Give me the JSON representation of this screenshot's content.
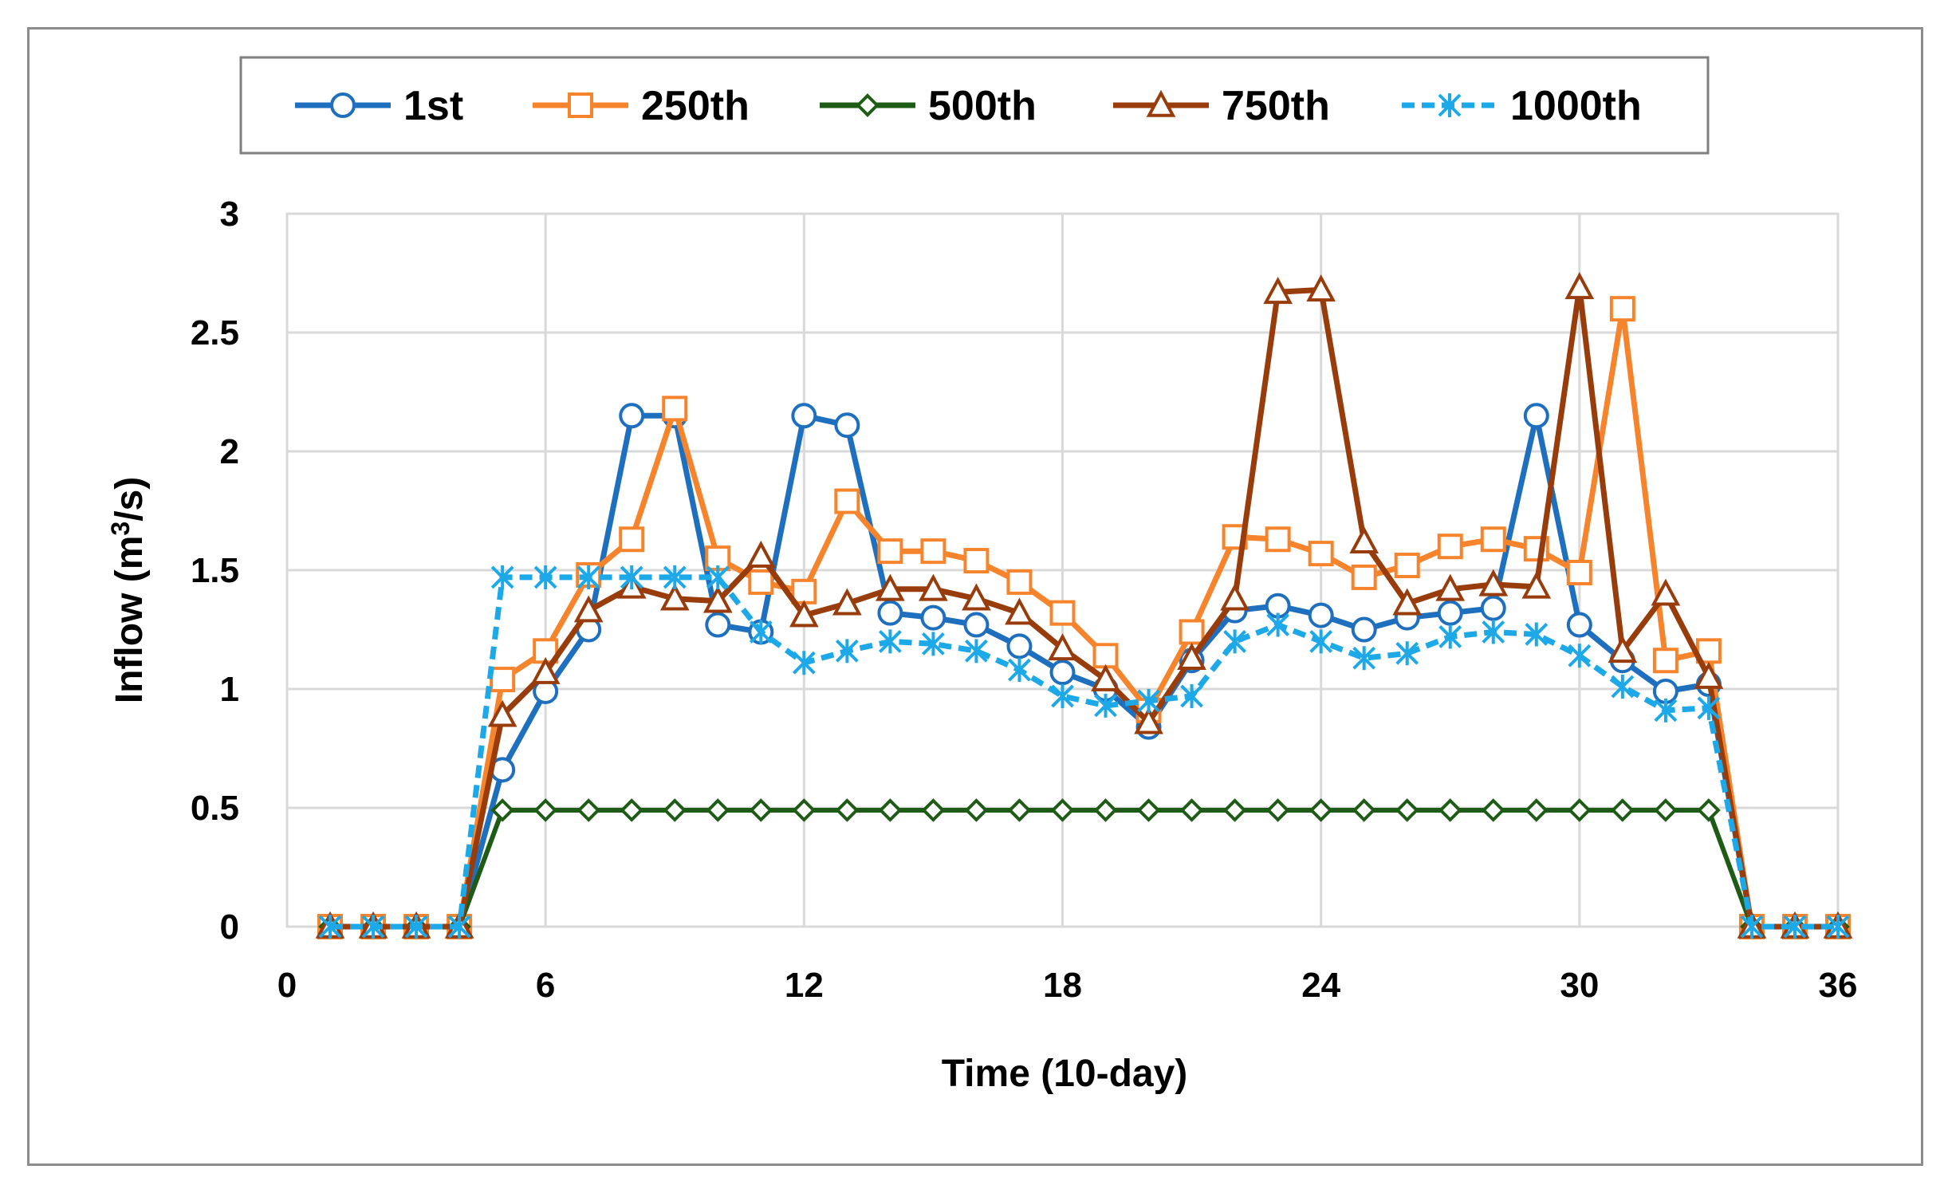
{
  "chart_data": {
    "type": "line",
    "title": "",
    "xlabel": "Time (10-day)",
    "ylabel_main": "Inflow (m",
    "ylabel_sup": "3",
    "ylabel_tail": "/s)",
    "xlim": [
      0,
      36
    ],
    "ylim": [
      0,
      3
    ],
    "xticks": [
      0,
      6,
      12,
      18,
      24,
      30,
      36
    ],
    "yticks": [
      0,
      0.5,
      1,
      1.5,
      2,
      2.5,
      3
    ],
    "ytick_labels": [
      "0",
      "0.5",
      "1",
      "1.5",
      "2",
      "2.5",
      "3"
    ],
    "grid": true,
    "legend_position": "top",
    "x": [
      1,
      2,
      3,
      4,
      5,
      6,
      7,
      8,
      9,
      10,
      11,
      12,
      13,
      14,
      15,
      16,
      17,
      18,
      19,
      20,
      21,
      22,
      23,
      24,
      25,
      26,
      27,
      28,
      29,
      30,
      31,
      32,
      33,
      34,
      35,
      36
    ],
    "series": [
      {
        "name": "1st",
        "color": "#1f6fbf",
        "marker": "circle",
        "dashed": false,
        "values": [
          0,
          0,
          0,
          0,
          0.66,
          0.99,
          1.25,
          2.15,
          2.15,
          1.27,
          1.24,
          2.15,
          2.11,
          1.32,
          1.3,
          1.27,
          1.18,
          1.07,
          1.0,
          0.84,
          1.12,
          1.33,
          1.35,
          1.31,
          1.25,
          1.3,
          1.32,
          1.34,
          2.15,
          1.27,
          1.12,
          0.99,
          1.02,
          0,
          0,
          0
        ]
      },
      {
        "name": "250th",
        "color": "#f5842c",
        "marker": "square",
        "dashed": false,
        "values": [
          0,
          0,
          0,
          0,
          1.04,
          1.16,
          1.48,
          1.63,
          2.18,
          1.55,
          1.45,
          1.41,
          1.79,
          1.58,
          1.58,
          1.54,
          1.45,
          1.32,
          1.14,
          0.91,
          1.24,
          1.64,
          1.63,
          1.57,
          1.47,
          1.52,
          1.6,
          1.63,
          1.59,
          1.49,
          2.6,
          1.12,
          1.16,
          0,
          0,
          0
        ]
      },
      {
        "name": "500th",
        "color": "#1e5b16",
        "marker": "diamond",
        "dashed": false,
        "values": [
          0,
          0,
          0,
          0,
          0.49,
          0.49,
          0.49,
          0.49,
          0.49,
          0.49,
          0.49,
          0.49,
          0.49,
          0.49,
          0.49,
          0.49,
          0.49,
          0.49,
          0.49,
          0.49,
          0.49,
          0.49,
          0.49,
          0.49,
          0.49,
          0.49,
          0.49,
          0.49,
          0.49,
          0.49,
          0.49,
          0.49,
          0.49,
          0,
          0,
          0
        ]
      },
      {
        "name": "750th",
        "color": "#983c0c",
        "marker": "triangle",
        "dashed": false,
        "values": [
          0,
          0,
          0,
          0,
          0.89,
          1.07,
          1.33,
          1.43,
          1.38,
          1.37,
          1.56,
          1.31,
          1.36,
          1.42,
          1.42,
          1.38,
          1.32,
          1.17,
          1.04,
          0.86,
          1.13,
          1.38,
          2.67,
          2.68,
          1.62,
          1.36,
          1.42,
          1.44,
          1.43,
          2.69,
          1.16,
          1.4,
          1.05,
          0,
          0,
          0
        ]
      },
      {
        "name": "1000th",
        "color": "#1da8e8",
        "marker": "asterisk",
        "dashed": true,
        "values": [
          0,
          0,
          0,
          0,
          1.47,
          1.47,
          1.47,
          1.47,
          1.47,
          1.47,
          1.24,
          1.11,
          1.16,
          1.2,
          1.19,
          1.16,
          1.08,
          0.97,
          0.93,
          0.95,
          0.97,
          1.2,
          1.27,
          1.2,
          1.13,
          1.15,
          1.22,
          1.24,
          1.23,
          1.14,
          1.01,
          0.91,
          0.92,
          0,
          0,
          0
        ]
      }
    ]
  }
}
